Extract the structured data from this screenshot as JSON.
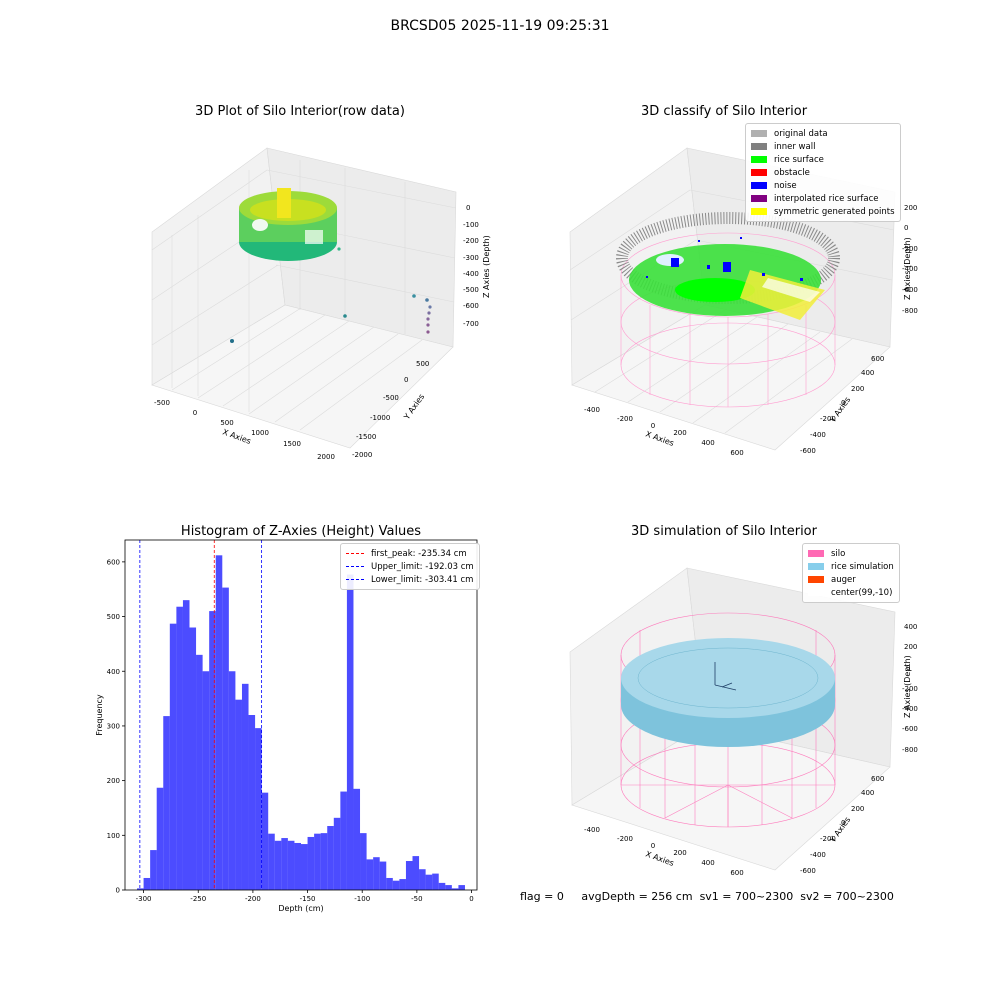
{
  "figure": {
    "suptitle": "BRCSD05 2025-11-19 09:25:31"
  },
  "panels": {
    "raw": {
      "title": "3D Plot of Silo Interior(row data)",
      "xlabel": "X Axies",
      "ylabel": "Y Axies",
      "zlabel": "Z Axies (Depth)",
      "xticks": [
        "-500",
        "0",
        "500",
        "1000",
        "1500",
        "2000"
      ],
      "yticks": [
        "500",
        "0",
        "-500",
        "-1000",
        "-1500",
        "-2000"
      ],
      "zticks": [
        "0",
        "-100",
        "-200",
        "-300",
        "-400",
        "-500",
        "-600",
        "-700"
      ]
    },
    "classify": {
      "title": "3D classify of Silo Interior",
      "xlabel": "X Axies",
      "ylabel": "Y Axies",
      "zlabel": "Z Axies (Depth)",
      "xticks": [
        "-400",
        "-200",
        "0",
        "200",
        "400",
        "600"
      ],
      "yticks": [
        "600",
        "400",
        "200",
        "0",
        "-200",
        "-400",
        "-600"
      ],
      "zticks": [
        "200",
        "0",
        "-200",
        "-400",
        "-600",
        "-800"
      ],
      "legend": [
        {
          "label": "original data",
          "color": "#b0b0b0"
        },
        {
          "label": "inner wall",
          "color": "#808080"
        },
        {
          "label": "rice surface",
          "color": "#00ff00"
        },
        {
          "label": "obstacle",
          "color": "#ff0000"
        },
        {
          "label": "noise",
          "color": "#0000ff"
        },
        {
          "label": "interpolated rice surface",
          "color": "#800080"
        },
        {
          "label": "symmetric generated points",
          "color": "#ffff00"
        }
      ]
    },
    "simulation": {
      "title": "3D simulation of Silo Interior",
      "xlabel": "X Axies",
      "ylabel": "Y Axies",
      "zlabel": "Z Axies (Depth)",
      "xticks": [
        "-400",
        "-200",
        "0",
        "200",
        "400",
        "600"
      ],
      "yticks": [
        "600",
        "400",
        "200",
        "0",
        "-200",
        "-400",
        "-600"
      ],
      "zticks": [
        "400",
        "200",
        "0",
        "-200",
        "-400",
        "-600",
        "-800"
      ],
      "legend": [
        {
          "label": "silo",
          "color": "#ff69b4"
        },
        {
          "label": "rice simulation",
          "color": "#87ceeb"
        },
        {
          "label": "auger",
          "color": "#ff4500"
        },
        {
          "label": "center(99,-10)",
          "color": "#ffffff"
        }
      ]
    }
  },
  "status": {
    "flag": "flag = 0",
    "avg_depth": "avgDepth = 256 cm",
    "sv1": "sv1 = 700~2300",
    "sv2": "sv2 = 700~2300"
  },
  "chart_data": {
    "type": "bar",
    "title": "Histogram of Z-Axies (Height) Values",
    "xlabel": "Depth (cm)",
    "ylabel": "Frequency",
    "xlim": [
      -317,
      5
    ],
    "ylim": [
      0,
      640
    ],
    "xticks": [
      -300,
      -250,
      -200,
      -150,
      -100,
      -50,
      0
    ],
    "yticks": [
      0,
      100,
      200,
      300,
      400,
      500,
      600
    ],
    "bar_color": "#0000ff",
    "bin_edges": [
      -306,
      -300,
      -294,
      -288,
      -282,
      -276,
      -270,
      -264,
      -258,
      -252,
      -246,
      -240,
      -234,
      -228,
      -222,
      -216,
      -210,
      -204,
      -198,
      -192,
      -186,
      -180,
      -174,
      -168,
      -162,
      -156,
      -150,
      -144,
      -138,
      -132,
      -126,
      -120,
      -114,
      -108,
      -102,
      -96,
      -90,
      -84,
      -78,
      -72,
      -66,
      -60,
      -54,
      -48,
      -42,
      -36,
      -30,
      -24,
      -18,
      -12,
      -6,
      0
    ],
    "values": [
      3,
      22,
      73,
      187,
      318,
      487,
      518,
      530,
      480,
      430,
      400,
      510,
      612,
      553,
      400,
      348,
      377,
      320,
      296,
      178,
      103,
      90,
      95,
      90,
      86,
      84,
      97,
      103,
      104,
      117,
      132,
      180,
      577,
      185,
      104,
      56,
      60,
      52,
      22,
      17,
      20,
      53,
      62,
      38,
      28,
      30,
      13,
      9,
      3,
      9,
      0
    ],
    "reference_lines": [
      {
        "label": "first_peak: -235.34 cm",
        "x": -235.34,
        "color": "#ff0000"
      },
      {
        "label": "Upper_limit: -192.03 cm",
        "x": -192.03,
        "color": "#0000ff"
      },
      {
        "label": "Lower_limit: -303.41 cm",
        "x": -303.41,
        "color": "#0000ff"
      }
    ],
    "legend_position": "top-right"
  }
}
